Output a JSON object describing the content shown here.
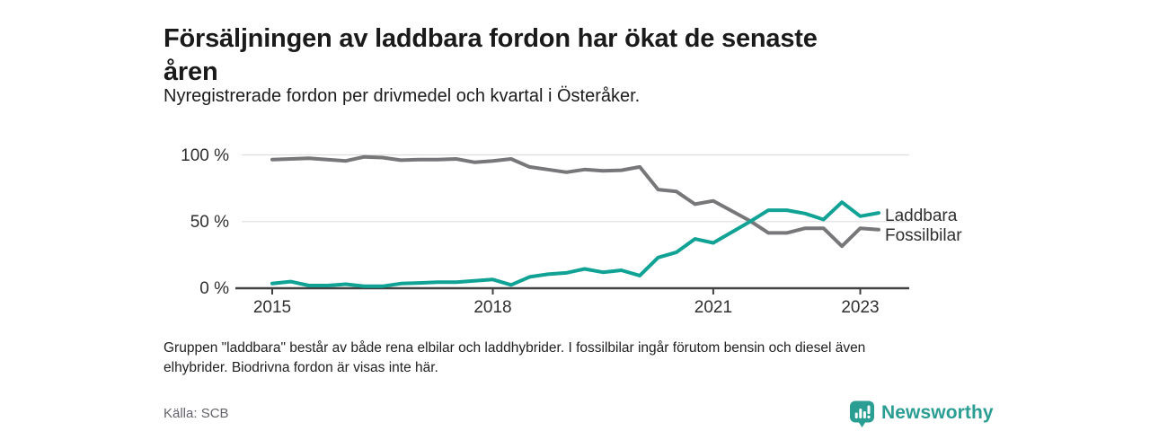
{
  "header": {
    "title_line1": "Försäljningen av laddbara fordon har ökat de senaste",
    "title_line2": "åren",
    "subtitle": "Nyregistrerade fordon per drivmedel och kvartal i Österåker."
  },
  "chart_data": {
    "type": "line",
    "unit": "%",
    "ylim": [
      0,
      100
    ],
    "grid": "horizontal",
    "yticks": [
      "100 %",
      "50 %",
      "0 %"
    ],
    "xticks": [
      {
        "label": "2015",
        "index": 0
      },
      {
        "label": "2018",
        "index": 12
      },
      {
        "label": "2021",
        "index": 24
      },
      {
        "label": "2023",
        "index": 32
      }
    ],
    "x": [
      "2015K1",
      "2015K2",
      "2015K3",
      "2015K4",
      "2016K1",
      "2016K2",
      "2016K3",
      "2016K4",
      "2017K1",
      "2017K2",
      "2017K3",
      "2017K4",
      "2018K1",
      "2018K2",
      "2018K3",
      "2018K4",
      "2019K1",
      "2019K2",
      "2019K3",
      "2019K4",
      "2020K1",
      "2020K2",
      "2020K3",
      "2020K4",
      "2021K1",
      "2021K2",
      "2021K3",
      "2021K4",
      "2022K1",
      "2022K2",
      "2022K3",
      "2022K4",
      "2023K1",
      "2023K2"
    ],
    "series": [
      {
        "name": "Laddbara",
        "color": "#10a294",
        "values": [
          3.5,
          5,
          2,
          2,
          3,
          1.5,
          1.5,
          3.5,
          4,
          4.5,
          4.5,
          5.5,
          6.5,
          2.5,
          8.5,
          10.5,
          11.5,
          14.5,
          12,
          13.5,
          9.5,
          23,
          27,
          37,
          34,
          42,
          50,
          58.5,
          58.5,
          56,
          51.5,
          64.5,
          54,
          56.5
        ]
      },
      {
        "name": "Fossilbilar",
        "color": "#77777a",
        "values": [
          96.5,
          97,
          97.5,
          96.5,
          95.5,
          98.5,
          98,
          96,
          96.5,
          96.5,
          97,
          94.5,
          95.5,
          97,
          91,
          89,
          87,
          89,
          88,
          88.5,
          91,
          74,
          72.5,
          63,
          65.5,
          58,
          50.5,
          41.5,
          41.5,
          45,
          45,
          31.5,
          45,
          44
        ]
      }
    ],
    "legend_position": "right-of-line-end"
  },
  "footnote": {
    "line1": "Gruppen \"laddbara\" består av både rena elbilar och laddhybrider. I fossilbilar ingår förutom bensin och diesel även",
    "line2": "elhybrider. Biodrivna fordon är visas inte här."
  },
  "source": "Källa: SCB",
  "logo": {
    "text": "Newsworthy",
    "color": "#2b9e93"
  }
}
